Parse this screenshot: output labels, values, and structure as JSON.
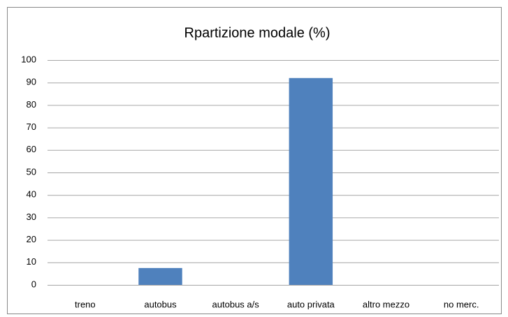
{
  "chart_data": {
    "type": "bar",
    "title": "Rpartizione modale (%)",
    "categories": [
      "treno",
      "autobus",
      "autobus a/s",
      "auto privata",
      "altro mezzo",
      "no merc."
    ],
    "values": [
      0,
      7.5,
      0,
      92,
      0,
      0
    ],
    "color": "#4f81bd",
    "ylim": [
      0,
      100
    ],
    "yticks": [
      0,
      10,
      20,
      30,
      40,
      50,
      60,
      70,
      80,
      90,
      100
    ],
    "grid": true
  }
}
